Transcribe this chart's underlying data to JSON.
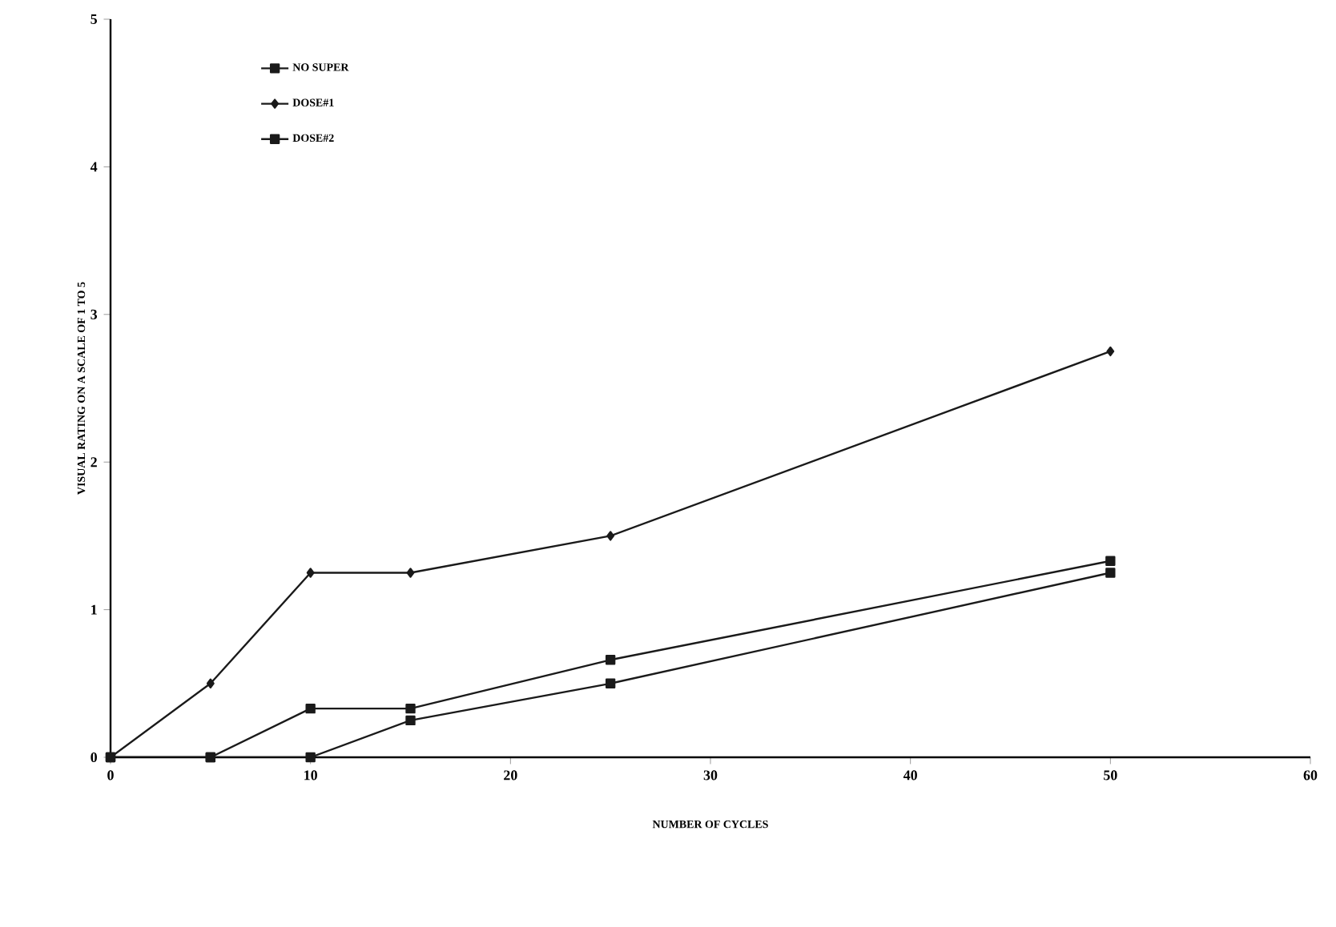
{
  "chart_data": {
    "type": "line",
    "xlabel": "NUMBER OF CYCLES",
    "ylabel": "VISUAL RATING ON A SCALE OF 1 TO 5",
    "x": [
      0,
      5,
      10,
      15,
      25,
      50
    ],
    "series": [
      {
        "name": "NO SUPER",
        "color": "#1a1a1a",
        "marker": "square",
        "values": [
          0,
          0,
          0.33,
          0.33,
          0.66,
          1.33
        ]
      },
      {
        "name": "DOSE#1",
        "color": "#1a1a1a",
        "marker": "diamond",
        "values": [
          0,
          0.5,
          1.25,
          1.25,
          1.5,
          2.75
        ]
      },
      {
        "name": "DOSE#2",
        "color": "#1a1a1a",
        "marker": "square",
        "values": [
          0,
          0,
          0,
          0.25,
          0.5,
          1.25
        ]
      }
    ],
    "xlim": [
      0,
      60
    ],
    "ylim": [
      0,
      5
    ],
    "xticks": [
      0,
      10,
      20,
      30,
      40,
      50,
      60
    ],
    "yticks": [
      0,
      1,
      2,
      3,
      4,
      5
    ],
    "grid": false,
    "legend": "top left",
    "line_style": "solid"
  }
}
